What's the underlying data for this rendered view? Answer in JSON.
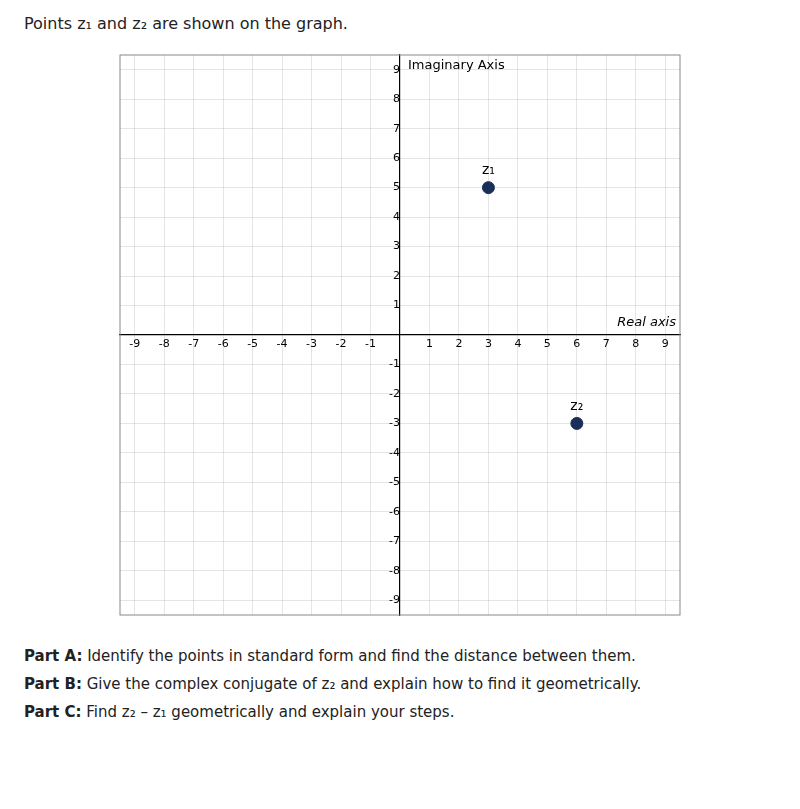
{
  "chart_data": {
    "type": "scatter",
    "title": "Points z₁ and z₂ are shown on the graph.",
    "xlabel": "Real axis",
    "ylabel": "Imaginary Axis",
    "series": [
      {
        "x": [
          3,
          6
        ],
        "values": [
          5,
          -3
        ],
        "point_labels": [
          "z₁",
          "z₂"
        ],
        "color": "#1a2e5a"
      }
    ],
    "xlim": [
      -9.5,
      9.5
    ],
    "ylim": [
      -9.5,
      9.5
    ],
    "xticks": [
      -9,
      -8,
      -7,
      -6,
      -5,
      -4,
      -3,
      -2,
      -1,
      1,
      2,
      3,
      4,
      5,
      6,
      7,
      8,
      9
    ],
    "yticks": [
      -9,
      -8,
      -7,
      -6,
      -5,
      -4,
      -3,
      -2,
      -1,
      1,
      2,
      3,
      4,
      5,
      6,
      7,
      8,
      9
    ],
    "grid": true,
    "notes": [
      {
        "label": "Part A:",
        "text": "Identify the points in standard form and find the distance between them."
      },
      {
        "label": "Part B:",
        "text": "Give the complex conjugate of z₂ and explain how to find it geometrically."
      },
      {
        "label": "Part C:",
        "text": "Find z₂ – z₁ geometrically and explain your steps."
      }
    ]
  }
}
